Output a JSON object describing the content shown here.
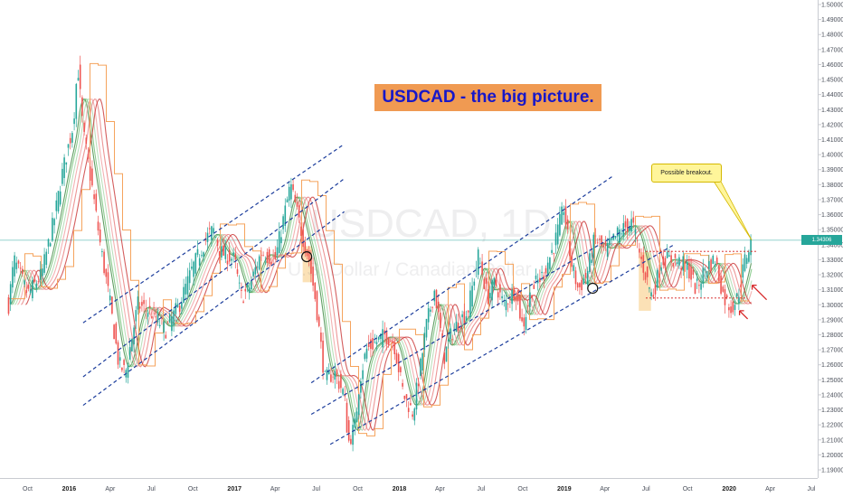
{
  "chart_data": {
    "type": "candlestick",
    "title": "USDCAD - the big picture.",
    "symbol": "USDCAD",
    "watermark": {
      "ticker": "USDCAD, 1D",
      "description": "U.S. Dollar / Canadian Dollar"
    },
    "y_axis": {
      "side": "right",
      "ylim": [
        1.185,
        1.502
      ],
      "ticks": [
        "1.50000",
        "1.49000",
        "1.48000",
        "1.47000",
        "1.46000",
        "1.45000",
        "1.44000",
        "1.43000",
        "1.42000",
        "1.41000",
        "1.40000",
        "1.39000",
        "1.38000",
        "1.37000",
        "1.36000",
        "1.35000",
        "1.34000",
        "1.33000",
        "1.32000",
        "1.31000",
        "1.30000",
        "1.29000",
        "1.28000",
        "1.27000",
        "1.26000",
        "1.25000",
        "1.24000",
        "1.23000",
        "1.22000",
        "1.21000",
        "1.20000",
        "1.19000"
      ]
    },
    "x_axis": {
      "labels": [
        "Oct",
        "2016",
        "Apr",
        "Jul",
        "Oct",
        "2017",
        "Apr",
        "Jul",
        "Oct",
        "2018",
        "Apr",
        "Jul",
        "Oct",
        "2019",
        "Apr",
        "Jul",
        "Oct",
        "2020",
        "Apr",
        "Jul"
      ],
      "year_labels": [
        "2016",
        "2017",
        "2018",
        "2019",
        "2020"
      ]
    },
    "current_price": {
      "value": 1.343,
      "label": "1.34306",
      "color": "#26a69a"
    },
    "price_path": [
      [
        "2015-08-20",
        1.3
      ],
      [
        "2015-09-01",
        1.33
      ],
      [
        "2015-10-01",
        1.307
      ],
      [
        "2015-11-01",
        1.32
      ],
      [
        "2015-12-01",
        1.36
      ],
      [
        "2015-12-15",
        1.385
      ],
      [
        "2016-01-10",
        1.42
      ],
      [
        "2016-01-20",
        1.46
      ],
      [
        "2016-02-01",
        1.415
      ],
      [
        "2016-02-20",
        1.38
      ],
      [
        "2016-03-10",
        1.34
      ],
      [
        "2016-04-01",
        1.3
      ],
      [
        "2016-04-20",
        1.26
      ],
      [
        "2016-05-05",
        1.255
      ],
      [
        "2016-06-01",
        1.3
      ],
      [
        "2016-07-01",
        1.295
      ],
      [
        "2016-08-01",
        1.283
      ],
      [
        "2016-09-01",
        1.3
      ],
      [
        "2016-10-01",
        1.325
      ],
      [
        "2016-11-01",
        1.345
      ],
      [
        "2016-11-15",
        1.35
      ],
      [
        "2016-12-01",
        1.335
      ],
      [
        "2017-01-01",
        1.33
      ],
      [
        "2017-01-15",
        1.305
      ],
      [
        "2017-02-01",
        1.31
      ],
      [
        "2017-03-01",
        1.335
      ],
      [
        "2017-04-01",
        1.33
      ],
      [
        "2017-05-05",
        1.38
      ],
      [
        "2017-06-01",
        1.345
      ],
      [
        "2017-06-15",
        1.33
      ],
      [
        "2017-07-01",
        1.3
      ],
      [
        "2017-07-20",
        1.25
      ],
      [
        "2017-08-10",
        1.255
      ],
      [
        "2017-09-01",
        1.24
      ],
      [
        "2017-09-10",
        1.208
      ],
      [
        "2017-09-25",
        1.22
      ],
      [
        "2017-10-05",
        1.25
      ],
      [
        "2017-10-20",
        1.27
      ],
      [
        "2017-11-10",
        1.275
      ],
      [
        "2017-12-01",
        1.28
      ],
      [
        "2017-12-20",
        1.275
      ],
      [
        "2018-01-10",
        1.24
      ],
      [
        "2018-01-31",
        1.228
      ],
      [
        "2018-02-15",
        1.255
      ],
      [
        "2018-03-01",
        1.285
      ],
      [
        "2018-03-20",
        1.31
      ],
      [
        "2018-04-10",
        1.265
      ],
      [
        "2018-04-25",
        1.28
      ],
      [
        "2018-05-15",
        1.29
      ],
      [
        "2018-06-01",
        1.295
      ],
      [
        "2018-06-25",
        1.333
      ],
      [
        "2018-07-15",
        1.305
      ],
      [
        "2018-08-01",
        1.315
      ],
      [
        "2018-08-20",
        1.3
      ],
      [
        "2018-09-15",
        1.31
      ],
      [
        "2018-10-01",
        1.285
      ],
      [
        "2018-10-20",
        1.31
      ],
      [
        "2018-11-15",
        1.32
      ],
      [
        "2018-12-10",
        1.34
      ],
      [
        "2018-12-31",
        1.365
      ],
      [
        "2019-01-15",
        1.33
      ],
      [
        "2019-02-01",
        1.31
      ],
      [
        "2019-02-20",
        1.32
      ],
      [
        "2019-03-10",
        1.345
      ],
      [
        "2019-04-01",
        1.335
      ],
      [
        "2019-05-01",
        1.348
      ],
      [
        "2019-05-31",
        1.355
      ],
      [
        "2019-06-20",
        1.33
      ],
      [
        "2019-07-15",
        1.305
      ],
      [
        "2019-08-05",
        1.33
      ],
      [
        "2019-09-01",
        1.33
      ],
      [
        "2019-10-01",
        1.325
      ],
      [
        "2019-10-20",
        1.31
      ],
      [
        "2019-11-10",
        1.325
      ],
      [
        "2019-12-01",
        1.33
      ],
      [
        "2019-12-20",
        1.305
      ],
      [
        "2020-01-05",
        1.298
      ],
      [
        "2020-01-20",
        1.305
      ],
      [
        "2020-02-05",
        1.33
      ],
      [
        "2020-02-20",
        1.343
      ]
    ],
    "overlays": {
      "ribbon_colors": [
        "#2e7d32",
        "#66bb6a",
        "#a5d6a7",
        "#ef9a9a",
        "#e57373",
        "#c62828"
      ],
      "step_line": {
        "name": "",
        "color": "#f5a35c"
      },
      "channel_lines": [
        {
          "from": [
            "2016-02-01",
            1.288
          ],
          "to": [
            "2017-09-01",
            1.407
          ]
        },
        {
          "from": [
            "2016-02-01",
            1.252
          ],
          "to": [
            "2017-09-01",
            1.384
          ]
        },
        {
          "from": [
            "2016-02-01",
            1.233
          ],
          "to": [
            "2017-09-01",
            1.362
          ]
        },
        {
          "from": [
            "2017-06-20",
            1.248
          ],
          "to": [
            "2019-04-20",
            1.386
          ]
        },
        {
          "from": [
            "2017-06-20",
            1.227
          ],
          "to": [
            "2019-06-01",
            1.353
          ]
        },
        {
          "from": [
            "2017-08-01",
            1.207
          ],
          "to": [
            "2019-09-01",
            1.34
          ]
        }
      ],
      "resistance": {
        "value": 1.3355,
        "from": "2019-07-01",
        "to": "2020-03-01",
        "color": "#d62728"
      },
      "support": {
        "value": 1.3045,
        "from": "2019-07-01",
        "to": "2020-02-10",
        "color": "#d62728"
      },
      "highlight_zones": [
        {
          "from": "2017-06-01",
          "to": "2017-06-22",
          "y_low": 1.315,
          "y_high": 1.339
        },
        {
          "from": "2019-06-15",
          "to": "2019-07-12",
          "y_low": 1.296,
          "y_high": 1.335
        }
      ],
      "circles": [
        [
          "2017-06-10",
          1.332
        ],
        [
          "2019-03-05",
          1.311
        ]
      ],
      "annotation": {
        "text": "Possible breakout.",
        "points_to": [
          "2020-02-20",
          1.343
        ]
      },
      "arrows": [
        [
          "2020-01-24",
          1.296
        ],
        [
          "2020-02-21",
          1.313
        ]
      ]
    }
  }
}
